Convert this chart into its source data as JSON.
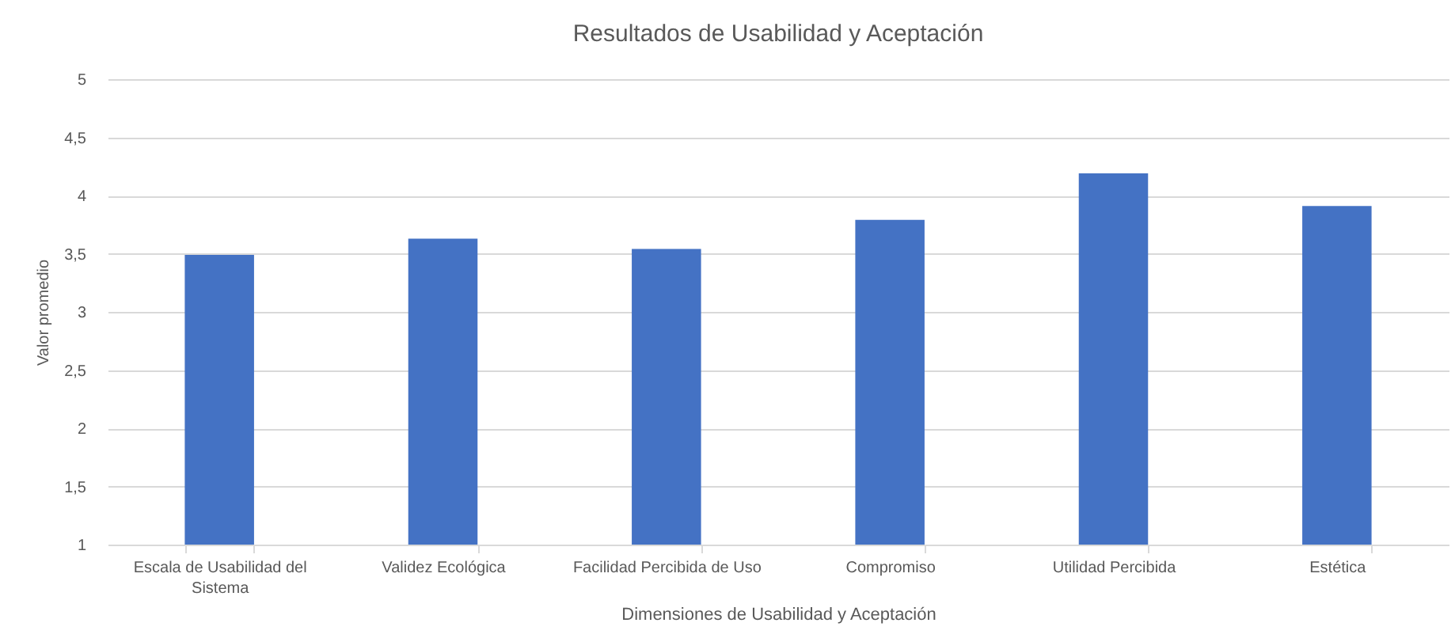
{
  "chart_data": {
    "type": "bar",
    "title": "Resultados de Usabilidad y Aceptación",
    "xlabel": "Dimensiones de Usabilidad y Aceptación",
    "ylabel": "Valor promedio",
    "categories": [
      "Escala de Usabilidad del Sistema",
      "Validez Ecológica",
      "Facilidad Percibida de Uso",
      "Compromiso",
      "Utilidad Percibida",
      "Estética"
    ],
    "values": [
      3.49,
      3.63,
      3.54,
      3.79,
      4.19,
      3.91
    ],
    "color": "#4472c4",
    "ylim": [
      1,
      5
    ],
    "yticks": [
      1,
      {
        "value": 1.5,
        "label": "1,5"
      },
      2,
      {
        "value": 2.5,
        "label": "2,5"
      },
      3,
      {
        "value": 3.5,
        "label": "3,5"
      },
      4,
      {
        "value": 4.5,
        "label": "4,5"
      },
      5
    ],
    "grid": "y"
  }
}
